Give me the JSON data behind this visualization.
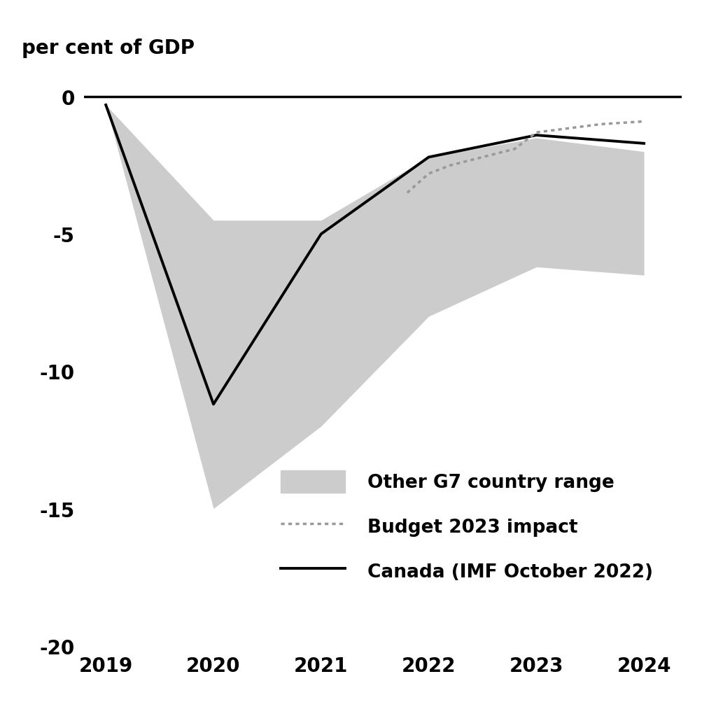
{
  "years": [
    2019,
    2020,
    2021,
    2022,
    2023,
    2024
  ],
  "canada_imf": [
    -0.3,
    -11.2,
    -5.0,
    -2.2,
    -1.4,
    -1.7
  ],
  "budget2023_years": [
    2021.8,
    2022,
    2022.2,
    2022.4,
    2022.6,
    2022.8,
    2023,
    2023.2,
    2023.4,
    2023.6,
    2023.8,
    2024
  ],
  "budget2023": [
    -3.5,
    -2.8,
    -2.5,
    -2.3,
    -2.1,
    -1.9,
    -1.3,
    -1.2,
    -1.1,
    -1.0,
    -0.95,
    -0.9
  ],
  "g7_upper": [
    -0.3,
    -4.5,
    -4.5,
    -2.2,
    -1.5,
    -2.0
  ],
  "g7_lower": [
    -0.3,
    -15.0,
    -12.0,
    -8.0,
    -6.2,
    -6.5
  ],
  "ylim": [
    -20,
    1.5
  ],
  "yticks": [
    0,
    -5,
    -10,
    -15,
    -20
  ],
  "ytick_labels": [
    "0",
    "-5",
    "-10",
    "-15",
    "-20"
  ],
  "xticks": [
    2019,
    2020,
    2021,
    2022,
    2023,
    2024
  ],
  "ylabel": "per cent of GDP",
  "g7_color": "#cccccc",
  "canada_color": "#000000",
  "budget_color": "#999999",
  "legend_labels": [
    "Other G7 country range",
    "Budget 2023 impact",
    "Canada (IMF October 2022)"
  ],
  "figsize": [
    10.04,
    10.04
  ],
  "dpi": 100
}
